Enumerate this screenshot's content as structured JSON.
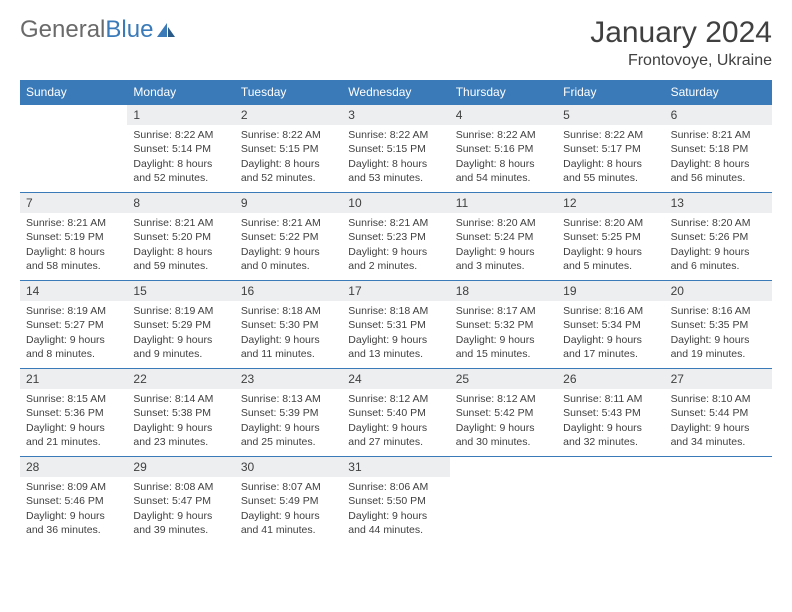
{
  "logo": {
    "text1": "General",
    "text2": "Blue"
  },
  "title": "January 2024",
  "location": "Frontovoye, Ukraine",
  "header_bg": "#3a7ab8",
  "daynum_bg": "#eceef0",
  "border_color": "#3a7ab8",
  "weekdays": [
    "Sunday",
    "Monday",
    "Tuesday",
    "Wednesday",
    "Thursday",
    "Friday",
    "Saturday"
  ],
  "weeks": [
    [
      {
        "n": "",
        "sr": "",
        "ss": "",
        "d1": "",
        "d2": ""
      },
      {
        "n": "1",
        "sr": "Sunrise: 8:22 AM",
        "ss": "Sunset: 5:14 PM",
        "d1": "Daylight: 8 hours",
        "d2": "and 52 minutes."
      },
      {
        "n": "2",
        "sr": "Sunrise: 8:22 AM",
        "ss": "Sunset: 5:15 PM",
        "d1": "Daylight: 8 hours",
        "d2": "and 52 minutes."
      },
      {
        "n": "3",
        "sr": "Sunrise: 8:22 AM",
        "ss": "Sunset: 5:15 PM",
        "d1": "Daylight: 8 hours",
        "d2": "and 53 minutes."
      },
      {
        "n": "4",
        "sr": "Sunrise: 8:22 AM",
        "ss": "Sunset: 5:16 PM",
        "d1": "Daylight: 8 hours",
        "d2": "and 54 minutes."
      },
      {
        "n": "5",
        "sr": "Sunrise: 8:22 AM",
        "ss": "Sunset: 5:17 PM",
        "d1": "Daylight: 8 hours",
        "d2": "and 55 minutes."
      },
      {
        "n": "6",
        "sr": "Sunrise: 8:21 AM",
        "ss": "Sunset: 5:18 PM",
        "d1": "Daylight: 8 hours",
        "d2": "and 56 minutes."
      }
    ],
    [
      {
        "n": "7",
        "sr": "Sunrise: 8:21 AM",
        "ss": "Sunset: 5:19 PM",
        "d1": "Daylight: 8 hours",
        "d2": "and 58 minutes."
      },
      {
        "n": "8",
        "sr": "Sunrise: 8:21 AM",
        "ss": "Sunset: 5:20 PM",
        "d1": "Daylight: 8 hours",
        "d2": "and 59 minutes."
      },
      {
        "n": "9",
        "sr": "Sunrise: 8:21 AM",
        "ss": "Sunset: 5:22 PM",
        "d1": "Daylight: 9 hours",
        "d2": "and 0 minutes."
      },
      {
        "n": "10",
        "sr": "Sunrise: 8:21 AM",
        "ss": "Sunset: 5:23 PM",
        "d1": "Daylight: 9 hours",
        "d2": "and 2 minutes."
      },
      {
        "n": "11",
        "sr": "Sunrise: 8:20 AM",
        "ss": "Sunset: 5:24 PM",
        "d1": "Daylight: 9 hours",
        "d2": "and 3 minutes."
      },
      {
        "n": "12",
        "sr": "Sunrise: 8:20 AM",
        "ss": "Sunset: 5:25 PM",
        "d1": "Daylight: 9 hours",
        "d2": "and 5 minutes."
      },
      {
        "n": "13",
        "sr": "Sunrise: 8:20 AM",
        "ss": "Sunset: 5:26 PM",
        "d1": "Daylight: 9 hours",
        "d2": "and 6 minutes."
      }
    ],
    [
      {
        "n": "14",
        "sr": "Sunrise: 8:19 AM",
        "ss": "Sunset: 5:27 PM",
        "d1": "Daylight: 9 hours",
        "d2": "and 8 minutes."
      },
      {
        "n": "15",
        "sr": "Sunrise: 8:19 AM",
        "ss": "Sunset: 5:29 PM",
        "d1": "Daylight: 9 hours",
        "d2": "and 9 minutes."
      },
      {
        "n": "16",
        "sr": "Sunrise: 8:18 AM",
        "ss": "Sunset: 5:30 PM",
        "d1": "Daylight: 9 hours",
        "d2": "and 11 minutes."
      },
      {
        "n": "17",
        "sr": "Sunrise: 8:18 AM",
        "ss": "Sunset: 5:31 PM",
        "d1": "Daylight: 9 hours",
        "d2": "and 13 minutes."
      },
      {
        "n": "18",
        "sr": "Sunrise: 8:17 AM",
        "ss": "Sunset: 5:32 PM",
        "d1": "Daylight: 9 hours",
        "d2": "and 15 minutes."
      },
      {
        "n": "19",
        "sr": "Sunrise: 8:16 AM",
        "ss": "Sunset: 5:34 PM",
        "d1": "Daylight: 9 hours",
        "d2": "and 17 minutes."
      },
      {
        "n": "20",
        "sr": "Sunrise: 8:16 AM",
        "ss": "Sunset: 5:35 PM",
        "d1": "Daylight: 9 hours",
        "d2": "and 19 minutes."
      }
    ],
    [
      {
        "n": "21",
        "sr": "Sunrise: 8:15 AM",
        "ss": "Sunset: 5:36 PM",
        "d1": "Daylight: 9 hours",
        "d2": "and 21 minutes."
      },
      {
        "n": "22",
        "sr": "Sunrise: 8:14 AM",
        "ss": "Sunset: 5:38 PM",
        "d1": "Daylight: 9 hours",
        "d2": "and 23 minutes."
      },
      {
        "n": "23",
        "sr": "Sunrise: 8:13 AM",
        "ss": "Sunset: 5:39 PM",
        "d1": "Daylight: 9 hours",
        "d2": "and 25 minutes."
      },
      {
        "n": "24",
        "sr": "Sunrise: 8:12 AM",
        "ss": "Sunset: 5:40 PM",
        "d1": "Daylight: 9 hours",
        "d2": "and 27 minutes."
      },
      {
        "n": "25",
        "sr": "Sunrise: 8:12 AM",
        "ss": "Sunset: 5:42 PM",
        "d1": "Daylight: 9 hours",
        "d2": "and 30 minutes."
      },
      {
        "n": "26",
        "sr": "Sunrise: 8:11 AM",
        "ss": "Sunset: 5:43 PM",
        "d1": "Daylight: 9 hours",
        "d2": "and 32 minutes."
      },
      {
        "n": "27",
        "sr": "Sunrise: 8:10 AM",
        "ss": "Sunset: 5:44 PM",
        "d1": "Daylight: 9 hours",
        "d2": "and 34 minutes."
      }
    ],
    [
      {
        "n": "28",
        "sr": "Sunrise: 8:09 AM",
        "ss": "Sunset: 5:46 PM",
        "d1": "Daylight: 9 hours",
        "d2": "and 36 minutes."
      },
      {
        "n": "29",
        "sr": "Sunrise: 8:08 AM",
        "ss": "Sunset: 5:47 PM",
        "d1": "Daylight: 9 hours",
        "d2": "and 39 minutes."
      },
      {
        "n": "30",
        "sr": "Sunrise: 8:07 AM",
        "ss": "Sunset: 5:49 PM",
        "d1": "Daylight: 9 hours",
        "d2": "and 41 minutes."
      },
      {
        "n": "31",
        "sr": "Sunrise: 8:06 AM",
        "ss": "Sunset: 5:50 PM",
        "d1": "Daylight: 9 hours",
        "d2": "and 44 minutes."
      },
      {
        "n": "",
        "sr": "",
        "ss": "",
        "d1": "",
        "d2": ""
      },
      {
        "n": "",
        "sr": "",
        "ss": "",
        "d1": "",
        "d2": ""
      },
      {
        "n": "",
        "sr": "",
        "ss": "",
        "d1": "",
        "d2": ""
      }
    ]
  ]
}
